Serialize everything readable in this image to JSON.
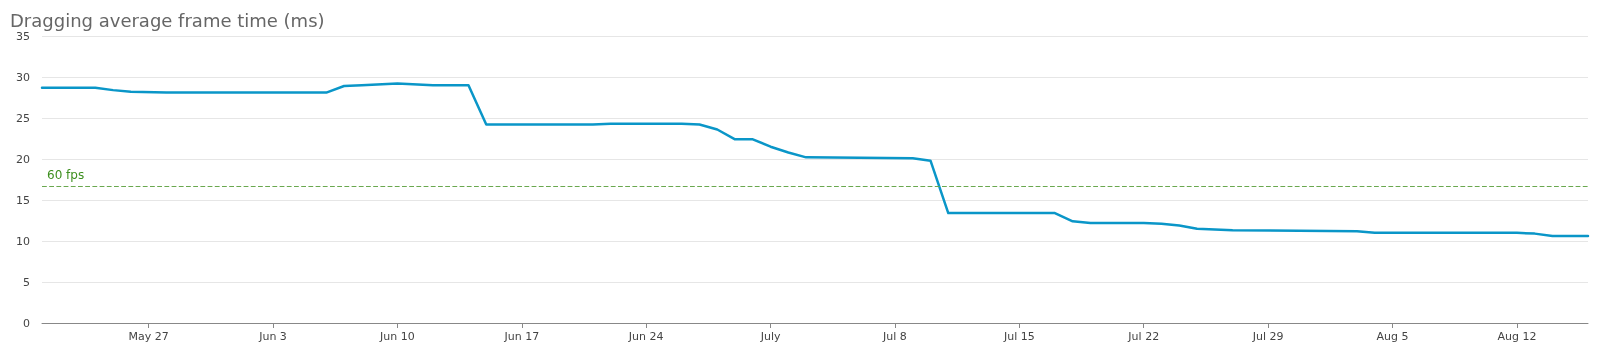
{
  "chart_data": {
    "type": "line",
    "title": "Dragging average frame time (ms)",
    "x": [
      "--05-21",
      "--05-24",
      "--05-25",
      "--05-26",
      "--05-28",
      "--06-01",
      "--06-06",
      "--06-07",
      "--06-08",
      "--06-10",
      "--06-12",
      "--06-14",
      "--06-15",
      "--06-21",
      "--06-22",
      "--06-26",
      "--06-27",
      "--06-28",
      "--06-29",
      "--06-30",
      "--07-01",
      "--07-02",
      "--07-03",
      "--07-09",
      "--07-10",
      "--07-11",
      "--07-17",
      "--07-18",
      "--07-19",
      "--07-22",
      "--07-23",
      "--07-24",
      "--07-25",
      "--07-27",
      "--08-03",
      "--08-04",
      "--08-12",
      "--08-13",
      "--08-14",
      "--08-16"
    ],
    "series": [
      {
        "color": "#0a96c8",
        "values": [
          28.7,
          28.7,
          28.4,
          28.2,
          28.1,
          28.1,
          28.1,
          28.9,
          29.0,
          29.2,
          29.0,
          29.0,
          24.2,
          24.2,
          24.3,
          24.3,
          24.2,
          23.6,
          22.4,
          22.4,
          21.5,
          20.8,
          20.2,
          20.1,
          19.8,
          13.4,
          13.4,
          12.4,
          12.2,
          12.2,
          12.1,
          11.9,
          11.5,
          11.3,
          11.2,
          11.0,
          11.0,
          10.9,
          10.6,
          10.6
        ]
      }
    ],
    "xlim": [
      "--05-21",
      "--08-16"
    ],
    "xticks": [
      {
        "value": "--05-27",
        "label": "May 27"
      },
      {
        "value": "--06-03",
        "label": "Jun 3"
      },
      {
        "value": "--06-10",
        "label": "Jun 10"
      },
      {
        "value": "--06-17",
        "label": "Jun 17"
      },
      {
        "value": "--06-24",
        "label": "Jun 24"
      },
      {
        "value": "--07-01",
        "label": "July"
      },
      {
        "value": "--07-08",
        "label": "Jul 8"
      },
      {
        "value": "--07-15",
        "label": "Jul 15"
      },
      {
        "value": "--07-22",
        "label": "Jul 22"
      },
      {
        "value": "--07-29",
        "label": "Jul 29"
      },
      {
        "value": "--08-05",
        "label": "Aug 5"
      },
      {
        "value": "--08-12",
        "label": "Aug 12"
      }
    ],
    "ylim": [
      0,
      35
    ],
    "yticks": [
      0,
      5,
      10,
      15,
      20,
      25,
      30,
      35
    ],
    "ref_lines": [
      {
        "axis": "y",
        "value": 16.7,
        "label": "60 fps",
        "color": "#6aa84f",
        "line_style": "dashed"
      }
    ],
    "grid": "y",
    "marker": "none",
    "line_style": "solid"
  }
}
